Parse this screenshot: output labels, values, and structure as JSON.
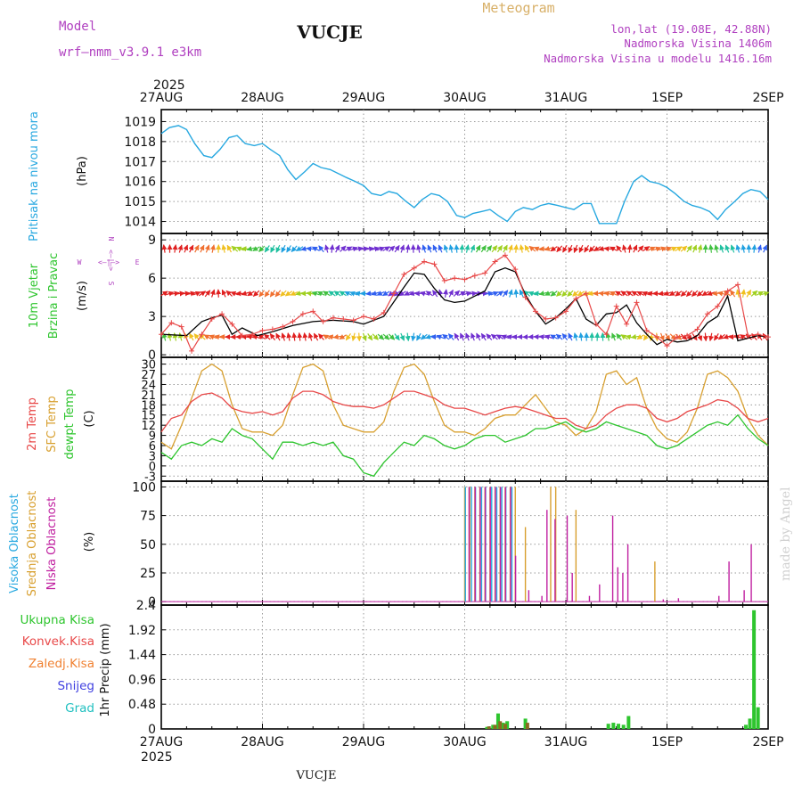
{
  "header": {
    "model_label": "Model",
    "model_value": "wrf—nmm_v3.9.1  e3km",
    "title": "VUCJE",
    "subtitle": "Meteogram",
    "coords": "lon,lat (19.08E, 42.88N)",
    "altitude": "Nadmorska Visina 1406m",
    "model_altitude": "Nadmorska Visina u modelu 1416.16m",
    "year": "2025",
    "footer": "VUCJE",
    "watermark": "made by Angel"
  },
  "colors": {
    "pressure": "#27a8e0",
    "wind_label": "#2ec52e",
    "compass": "#b040c0",
    "temp2m": "#e84848",
    "sfc": "#d8a030",
    "dewpt": "#2ec52e",
    "high_cloud": "#27a8e0",
    "mid_cloud": "#d8a030",
    "low_cloud": "#c020a0",
    "total_precip": "#2ec52e",
    "conv_precip": "#e84848",
    "frozen_precip": "#f08030",
    "snow": "#4040e0",
    "hail": "#20c0c0"
  },
  "chart_data": [
    {
      "type": "line",
      "panel": "pressure",
      "ylabel_side": "Pritisak na nivou mora",
      "unit": "(hPa)",
      "x_ticks": [
        "27AUG",
        "28AUG",
        "29AUG",
        "30AUG",
        "31AUG",
        "1SEP",
        "2SEP"
      ],
      "xlim_days": [
        0,
        6
      ],
      "ylim": [
        1013.4,
        1019.6
      ],
      "y_ticks": [
        1014,
        1015,
        1016,
        1017,
        1018,
        1019
      ],
      "grid": true,
      "x": [
        0.0,
        0.08,
        0.17,
        0.25,
        0.33,
        0.42,
        0.5,
        0.58,
        0.67,
        0.75,
        0.83,
        0.92,
        1.0,
        1.08,
        1.17,
        1.25,
        1.33,
        1.42,
        1.5,
        1.58,
        1.67,
        1.75,
        1.83,
        1.92,
        2.0,
        2.08,
        2.17,
        2.25,
        2.33,
        2.42,
        2.5,
        2.58,
        2.67,
        2.75,
        2.83,
        2.92,
        3.0,
        3.08,
        3.17,
        3.25,
        3.33,
        3.42,
        3.5,
        3.58,
        3.67,
        3.75,
        3.83,
        3.92,
        4.0,
        4.08,
        4.17,
        4.25,
        4.33,
        4.42,
        4.5,
        4.58,
        4.67,
        4.75,
        4.83,
        4.92,
        5.0,
        5.08,
        5.17,
        5.25,
        5.33,
        5.42,
        5.5,
        5.58,
        5.67,
        5.75,
        5.83,
        5.92,
        6.0
      ],
      "y": [
        1018.4,
        1018.7,
        1018.8,
        1018.6,
        1017.9,
        1017.3,
        1017.2,
        1017.6,
        1018.2,
        1018.3,
        1017.9,
        1017.8,
        1017.9,
        1017.6,
        1017.3,
        1016.6,
        1016.1,
        1016.5,
        1016.9,
        1016.7,
        1016.6,
        1016.4,
        1016.2,
        1016.0,
        1015.8,
        1015.4,
        1015.3,
        1015.5,
        1015.4,
        1015.0,
        1014.7,
        1015.1,
        1015.4,
        1015.3,
        1015.0,
        1014.3,
        1014.2,
        1014.4,
        1014.5,
        1014.6,
        1014.3,
        1014.0,
        1014.5,
        1014.7,
        1014.6,
        1014.8,
        1014.9,
        1014.8,
        1014.7,
        1014.6,
        1014.9,
        1014.9,
        1013.9,
        1013.9,
        1013.9,
        1015.0,
        1016.0,
        1016.3,
        1016.0,
        1015.9,
        1015.7,
        1015.4,
        1015.0,
        1014.8,
        1014.7,
        1014.5,
        1014.1,
        1014.6,
        1015.0,
        1015.4,
        1015.6,
        1015.5,
        1015.1
      ]
    },
    {
      "type": "line",
      "panel": "wind",
      "ylabel_side": [
        "10m Vjetar",
        "Brzina i Pravac"
      ],
      "unit": "(m/s)",
      "compass": {
        "n": "N",
        "w": "W",
        "e": "E",
        "s": "S",
        "arrow": "<—|—>"
      },
      "ylim": [
        -0.2,
        9.5
      ],
      "y_ticks": [
        0,
        3,
        6,
        9
      ],
      "grid": true,
      "series": [
        {
          "x": [
            0.0,
            0.25,
            0.4,
            0.5,
            0.6,
            0.7,
            0.8,
            0.95,
            1.1,
            1.3,
            1.5,
            1.7,
            1.9,
            2.0,
            2.2,
            2.4,
            2.5,
            2.6,
            2.7,
            2.8,
            2.9,
            3.0,
            3.1,
            3.2,
            3.3,
            3.4,
            3.5,
            3.6,
            3.7,
            3.8,
            3.9,
            4.0,
            4.1,
            4.2,
            4.3,
            4.4,
            4.5,
            4.6,
            4.7,
            4.8,
            4.9,
            5.0,
            5.1,
            5.2,
            5.3,
            5.4,
            5.5,
            5.6,
            5.7,
            5.8,
            5.9,
            6.0
          ],
          "y": [
            1.6,
            1.5,
            2.6,
            2.9,
            3.1,
            1.6,
            2.1,
            1.5,
            1.8,
            2.3,
            2.6,
            2.7,
            2.6,
            2.4,
            3.0,
            5.3,
            6.4,
            6.3,
            5.2,
            4.3,
            4.1,
            4.2,
            4.6,
            5.0,
            6.5,
            6.8,
            6.5,
            4.7,
            3.4,
            2.4,
            2.9,
            3.6,
            4.4,
            2.8,
            2.3,
            3.2,
            3.3,
            3.9,
            2.5,
            1.6,
            0.8,
            1.2,
            1.0,
            1.1,
            1.5,
            2.5,
            3.0,
            4.6,
            1.1,
            1.3,
            1.5,
            1.4
          ]
        },
        {
          "x": [
            0.0,
            0.1,
            0.2,
            0.3,
            0.4,
            0.5,
            0.6,
            0.7,
            0.8,
            0.9,
            1.0,
            1.1,
            1.2,
            1.3,
            1.4,
            1.5,
            1.6,
            1.7,
            1.8,
            1.9,
            2.0,
            2.1,
            2.2,
            2.3,
            2.4,
            2.5,
            2.6,
            2.7,
            2.8,
            2.9,
            3.0,
            3.1,
            3.2,
            3.3,
            3.4,
            3.5,
            3.6,
            3.7,
            3.8,
            3.9,
            4.0,
            4.1,
            4.2,
            4.3,
            4.4,
            4.5,
            4.6,
            4.7,
            4.8,
            4.9,
            5.0,
            5.1,
            5.2,
            5.3,
            5.4,
            5.5,
            5.6,
            5.7,
            5.8,
            5.9,
            6.0
          ],
          "y": [
            1.6,
            2.5,
            2.2,
            0.3,
            1.6,
            2.8,
            3.2,
            2.4,
            1.5,
            1.6,
            1.9,
            2.0,
            2.2,
            2.6,
            3.2,
            3.4,
            2.6,
            2.9,
            2.8,
            2.7,
            3.0,
            2.8,
            3.3,
            4.8,
            6.3,
            6.8,
            7.3,
            7.1,
            5.8,
            6.0,
            5.9,
            6.2,
            6.4,
            7.3,
            7.8,
            6.7,
            4.5,
            3.4,
            2.8,
            2.9,
            3.4,
            4.4,
            4.8,
            2.4,
            1.6,
            3.8,
            2.4,
            4.1,
            1.9,
            1.4,
            0.7,
            1.4,
            1.5,
            2.0,
            3.2,
            3.8,
            5.0,
            5.5,
            1.5,
            1.6,
            1.4
          ]
        }
      ],
      "arrow_lanes": [
        1.4,
        4.8,
        8.3
      ]
    },
    {
      "type": "line",
      "panel": "temperature",
      "ylabel_side": [
        "2m Temp",
        "SFC Temp",
        "dewpt Temp"
      ],
      "unit": "(C)",
      "ylim": [
        -4.5,
        32
      ],
      "y_ticks": [
        -3,
        0,
        3,
        6,
        9,
        12,
        15,
        18,
        21,
        24,
        27,
        30
      ],
      "grid": true,
      "series": [
        {
          "x": [
            0.0,
            0.1,
            0.2,
            0.3,
            0.4,
            0.5,
            0.6,
            0.7,
            0.8,
            0.9,
            1.0,
            1.1,
            1.2,
            1.3,
            1.4,
            1.5,
            1.6,
            1.7,
            1.8,
            1.9,
            2.0,
            2.1,
            2.2,
            2.3,
            2.4,
            2.5,
            2.6,
            2.7,
            2.8,
            2.9,
            3.0,
            3.1,
            3.2,
            3.3,
            3.4,
            3.5,
            3.6,
            3.7,
            3.8,
            3.9,
            4.0,
            4.1,
            4.2,
            4.3,
            4.4,
            4.5,
            4.6,
            4.7,
            4.8,
            4.9,
            5.0,
            5.1,
            5.2,
            5.3,
            5.4,
            5.5,
            5.6,
            5.7,
            5.8,
            5.9,
            6.0
          ],
          "y": [
            10,
            14,
            15,
            19,
            21,
            21.5,
            20,
            17,
            16,
            15.5,
            16,
            15,
            16,
            20,
            22,
            22,
            21,
            19,
            18,
            17.5,
            17.5,
            17,
            18,
            20,
            22,
            22,
            21,
            20,
            18,
            17,
            17,
            16,
            15,
            16,
            17,
            17.5,
            17,
            16,
            15,
            14,
            14,
            12,
            11,
            12,
            15,
            17,
            18,
            18,
            17,
            14,
            13,
            14,
            16,
            17,
            18,
            19.5,
            19,
            17,
            14,
            13,
            14
          ]
        },
        {
          "x": [
            0.0,
            0.1,
            0.2,
            0.3,
            0.4,
            0.5,
            0.6,
            0.7,
            0.8,
            0.9,
            1.0,
            1.1,
            1.2,
            1.3,
            1.4,
            1.5,
            1.6,
            1.7,
            1.8,
            1.9,
            2.0,
            2.1,
            2.2,
            2.3,
            2.4,
            2.5,
            2.6,
            2.7,
            2.8,
            2.9,
            3.0,
            3.1,
            3.2,
            3.3,
            3.4,
            3.5,
            3.6,
            3.7,
            3.8,
            3.9,
            4.0,
            4.1,
            4.2,
            4.3,
            4.4,
            4.5,
            4.6,
            4.7,
            4.8,
            4.9,
            5.0,
            5.1,
            5.2,
            5.3,
            5.4,
            5.5,
            5.6,
            5.7,
            5.8,
            5.9,
            6.0
          ],
          "y": [
            7,
            5,
            12,
            20,
            28,
            30,
            28,
            18,
            11,
            10,
            10,
            9,
            12,
            21,
            29,
            30,
            28,
            18,
            12,
            11,
            10,
            10,
            13,
            22,
            29,
            30,
            27,
            19,
            12,
            10,
            10,
            9,
            11,
            14,
            15,
            15,
            18,
            21,
            17,
            13,
            12,
            9,
            11,
            16,
            27,
            28,
            24,
            26,
            17,
            11,
            8,
            7,
            10,
            17,
            27,
            28,
            26,
            22,
            14,
            9,
            6
          ]
        },
        {
          "x": [
            0.0,
            0.1,
            0.2,
            0.3,
            0.4,
            0.5,
            0.6,
            0.7,
            0.8,
            0.9,
            1.0,
            1.1,
            1.2,
            1.3,
            1.4,
            1.5,
            1.6,
            1.7,
            1.8,
            1.9,
            2.0,
            2.1,
            2.2,
            2.3,
            2.4,
            2.5,
            2.6,
            2.7,
            2.8,
            2.9,
            3.0,
            3.1,
            3.2,
            3.3,
            3.4,
            3.5,
            3.6,
            3.7,
            3.8,
            3.9,
            4.0,
            4.1,
            4.2,
            4.3,
            4.4,
            4.5,
            4.6,
            4.7,
            4.8,
            4.9,
            5.0,
            5.1,
            5.2,
            5.3,
            5.4,
            5.5,
            5.6,
            5.7,
            5.8,
            5.9,
            6.0
          ],
          "y": [
            4,
            2,
            6,
            7,
            6,
            8,
            7,
            11,
            9,
            8,
            5,
            2,
            7,
            7,
            6,
            7,
            6,
            7,
            3,
            2,
            -2,
            -3,
            1,
            4,
            7,
            6,
            9,
            8,
            6,
            5,
            6,
            8,
            9,
            9,
            7,
            8,
            9,
            11,
            11,
            12,
            13,
            11,
            10,
            11,
            13,
            12,
            11,
            10,
            9,
            6,
            5,
            6,
            8,
            10,
            12,
            13,
            12,
            15,
            11,
            8,
            6
          ]
        }
      ]
    },
    {
      "type": "bar",
      "panel": "cloud",
      "ylabel_side": [
        "Visoka Oblacnost",
        "Srednja Oblacnost",
        "Niska Oblacnost"
      ],
      "unit": "(%)",
      "ylim": [
        -3,
        105
      ],
      "y_ticks": [
        0,
        25,
        50,
        75,
        100
      ],
      "grid": true,
      "series": [
        {
          "x": [
            3.02,
            3.08,
            3.12,
            3.18,
            3.22,
            3.28,
            3.33,
            3.38,
            3.42,
            3.48
          ],
          "values": [
            100,
            100,
            100,
            100,
            100,
            100,
            100,
            100,
            100,
            100
          ]
        },
        {
          "x": [
            3.0,
            3.05,
            3.1,
            3.15,
            3.2,
            3.25,
            3.3,
            3.35,
            3.4,
            3.45,
            3.5,
            3.6,
            3.85,
            3.9,
            4.1,
            4.88
          ],
          "values": [
            100,
            100,
            100,
            100,
            100,
            100,
            100,
            100,
            100,
            100,
            100,
            65,
            100,
            100,
            80,
            35
          ]
        },
        {
          "x": [
            3.03,
            3.09,
            3.14,
            3.19,
            3.24,
            3.29,
            3.34,
            3.39,
            3.44,
            3.49,
            3.62,
            3.75,
            3.8,
            3.88,
            4.0,
            4.05,
            4.22,
            4.32,
            4.45,
            4.5,
            4.55,
            4.6,
            4.95,
            5.1,
            5.5,
            5.6,
            5.75,
            5.82
          ],
          "values": [
            100,
            100,
            100,
            100,
            100,
            100,
            100,
            100,
            100,
            40,
            10,
            5,
            80,
            72,
            75,
            25,
            5,
            15,
            75,
            30,
            25,
            50,
            2,
            3,
            5,
            35,
            10,
            50
          ]
        }
      ]
    },
    {
      "type": "bar",
      "panel": "precipitation",
      "legend": [
        "Ukupna Kisa",
        "Konvek.Kisa",
        "Zaledj.Kisa",
        "Snijeg",
        "Grad"
      ],
      "ylabel_side": "1hr Precip (mm)",
      "ylim": [
        0,
        2.4
      ],
      "y_ticks": [
        0,
        0.48,
        0.96,
        1.44,
        1.92,
        2.4
      ],
      "grid": true,
      "series": [
        {
          "x": [
            3.22,
            3.28,
            3.33,
            3.38,
            3.42,
            3.6,
            4.42,
            4.47,
            4.52,
            4.57,
            4.62,
            5.78,
            5.82,
            5.86,
            5.9
          ],
          "values": [
            0.04,
            0.08,
            0.3,
            0.12,
            0.15,
            0.2,
            0.1,
            0.12,
            0.1,
            0.08,
            0.25,
            0.08,
            0.2,
            2.3,
            0.42
          ]
        },
        {
          "x": [
            3.24,
            3.3,
            3.35,
            3.4,
            3.62
          ],
          "values": [
            0.05,
            0.08,
            0.15,
            0.1,
            0.12
          ]
        }
      ]
    }
  ]
}
